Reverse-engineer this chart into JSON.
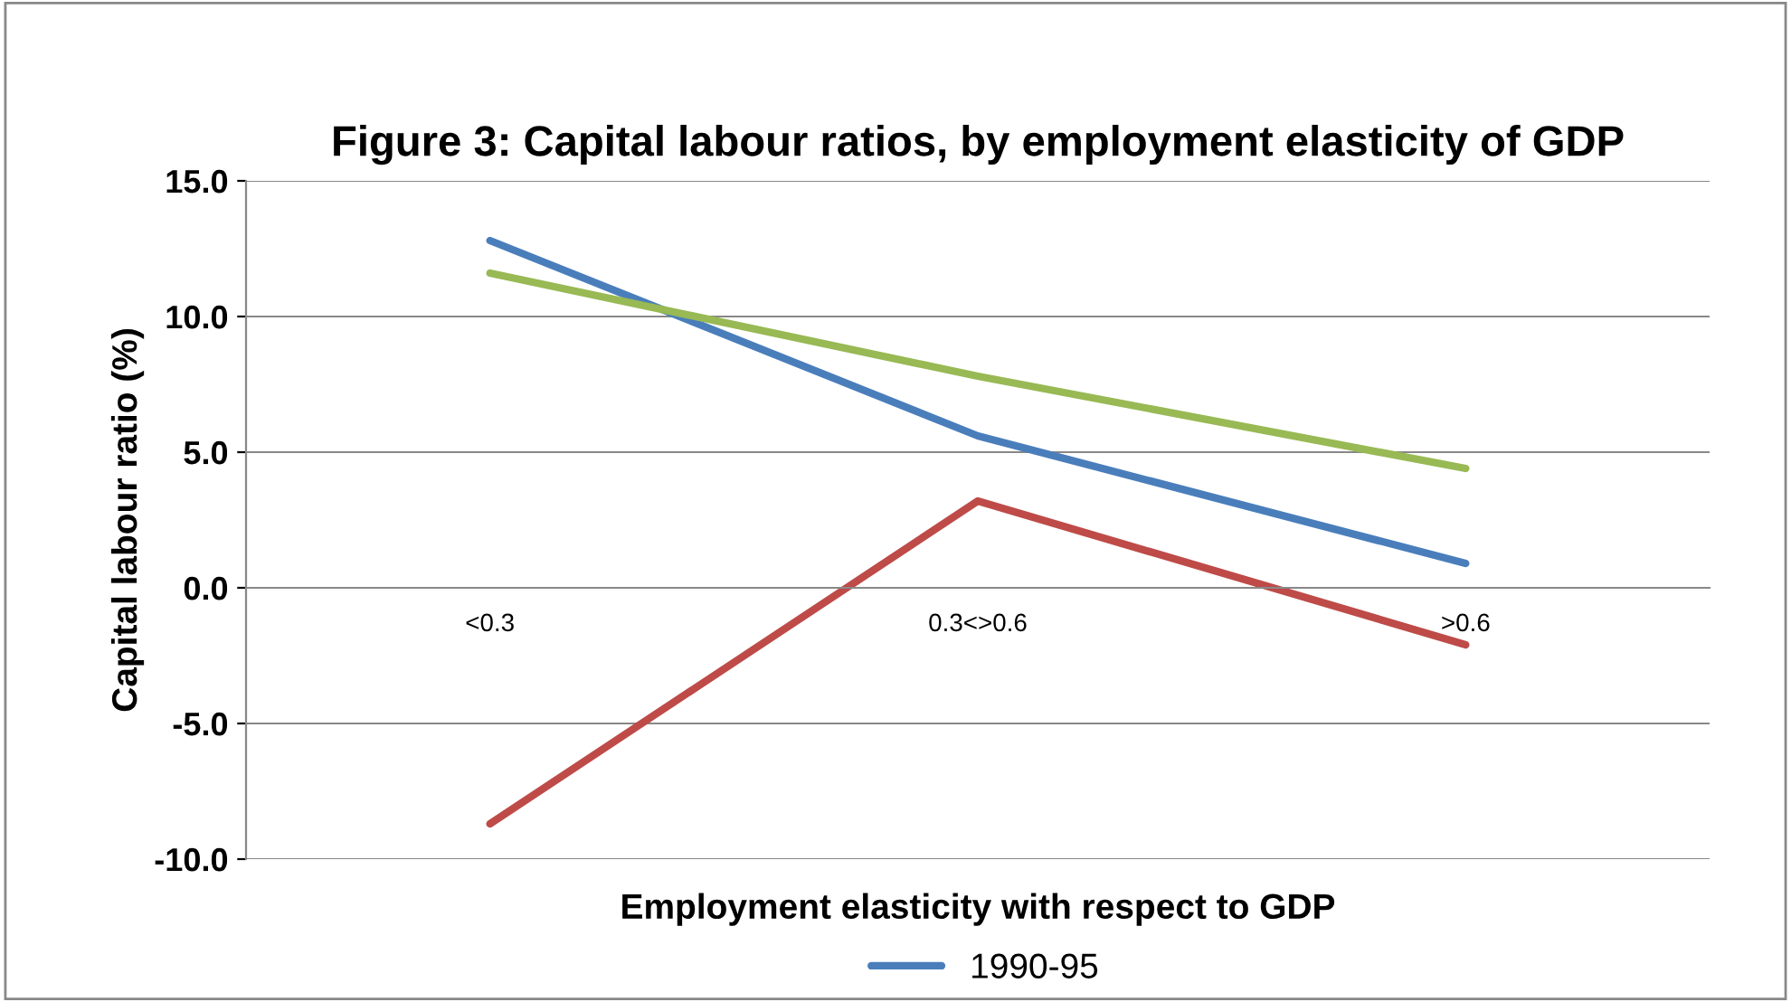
{
  "chart_data": {
    "type": "line",
    "title": "Figure 3: Capital labour ratios, by employment elasticity of GDP",
    "xlabel": "Employment elasticity with respect to GDP",
    "ylabel": "Capital labour ratio (%)",
    "categories": [
      "<0.3",
      "0.3<>0.6",
      ">0.6"
    ],
    "series": [
      {
        "name": "1990-95",
        "color": "#4a7ebb",
        "values": [
          12.8,
          5.6,
          0.9
        ]
      },
      {
        "color": "#98b954",
        "values": [
          11.6,
          7.8,
          4.4
        ]
      },
      {
        "color": "#be4b48",
        "values": [
          -8.7,
          3.2,
          -2.1
        ]
      }
    ],
    "ylim": [
      -10,
      15
    ],
    "yticks": [
      {
        "value": -10,
        "label": "-10.0"
      },
      {
        "value": -5,
        "label": "-5.0"
      },
      {
        "value": 0,
        "label": "0.0"
      },
      {
        "value": 5,
        "label": "5.0"
      },
      {
        "value": 10,
        "label": "10.0"
      },
      {
        "value": 15,
        "label": "15.0"
      }
    ],
    "grid": "y",
    "legend": "bottom",
    "marker": "none",
    "line_style": "solid"
  }
}
